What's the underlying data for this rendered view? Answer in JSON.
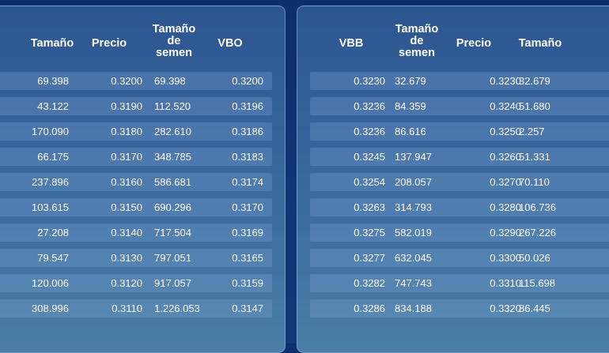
{
  "bids_panel": {
    "headers": {
      "size": "Tamaño",
      "price": "Precio",
      "cum_size": [
        "Tamaño",
        "de",
        "semen"
      ],
      "vbo": "VBO"
    },
    "rows": [
      {
        "size": "69.398",
        "price": "0.3200",
        "cum": "69.398",
        "vbo": "0.3200"
      },
      {
        "size": "43.122",
        "price": "0.3190",
        "cum": "112.520",
        "vbo": "0.3196"
      },
      {
        "size": "170.090",
        "price": "0.3180",
        "cum": "282.610",
        "vbo": "0.3186"
      },
      {
        "size": "66.175",
        "price": "0.3170",
        "cum": "348.785",
        "vbo": "0.3183"
      },
      {
        "size": "237.896",
        "price": "0.3160",
        "cum": "586.681",
        "vbo": "0.3174"
      },
      {
        "size": "103.615",
        "price": "0.3150",
        "cum": "690.296",
        "vbo": "0.3170"
      },
      {
        "size": "27.208",
        "price": "0.3140",
        "cum": "717.504",
        "vbo": "0.3169"
      },
      {
        "size": "79.547",
        "price": "0.3130",
        "cum": "797.051",
        "vbo": "0.3165"
      },
      {
        "size": "120.006",
        "price": "0.3120",
        "cum": "917.057",
        "vbo": "0.3159"
      },
      {
        "size": "308.996",
        "price": "0.3110",
        "cum": "1.226.053",
        "vbo": "0.3147"
      }
    ]
  },
  "asks_panel": {
    "headers": {
      "vbb": "VBB",
      "cum_size": [
        "Tamaño",
        "de",
        "semen"
      ],
      "price": "Precio",
      "size": "Tamaño"
    },
    "rows": [
      {
        "vbb": "0.3230",
        "cum": "32.679",
        "price": "0.3230",
        "size": "32.679"
      },
      {
        "vbb": "0.3236",
        "cum": "84.359",
        "price": "0.3240",
        "size": "51.680"
      },
      {
        "vbb": "0.3236",
        "cum": "86.616",
        "price": "0.3250",
        "size": "2.257"
      },
      {
        "vbb": "0.3245",
        "cum": "137.947",
        "price": "0.3260",
        "size": "51.331"
      },
      {
        "vbb": "0.3254",
        "cum": "208.057",
        "price": "0.3270",
        "size": "70.110"
      },
      {
        "vbb": "0.3263",
        "cum": "314.793",
        "price": "0.3280",
        "size": "106.736"
      },
      {
        "vbb": "0.3275",
        "cum": "582.019",
        "price": "0.3290",
        "size": "267.226"
      },
      {
        "vbb": "0.3277",
        "cum": "632.045",
        "price": "0.3300",
        "size": "50.026"
      },
      {
        "vbb": "0.3282",
        "cum": "747.743",
        "price": "0.3310",
        "size": "115.698"
      },
      {
        "vbb": "0.3286",
        "cum": "834.188",
        "price": "0.3320",
        "size": "86.445"
      }
    ]
  }
}
